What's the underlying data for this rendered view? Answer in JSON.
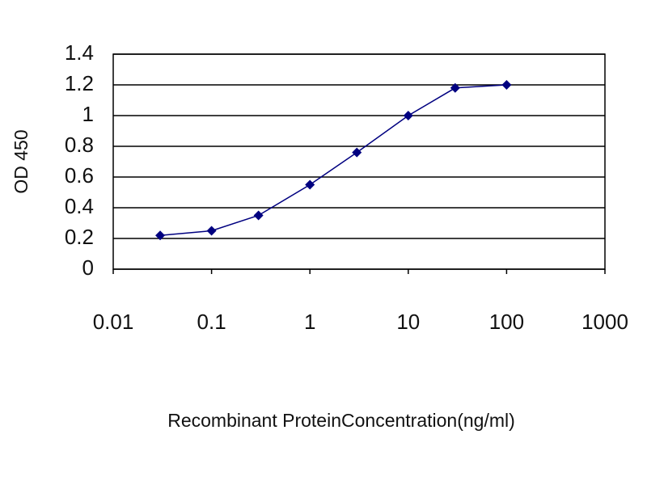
{
  "chart_data": {
    "type": "line",
    "x_label": "Recombinant ProteinConcentration(ng/ml)",
    "y_label": "OD 450",
    "x": [
      0.03,
      0.1,
      0.3,
      1,
      3,
      10,
      30,
      100
    ],
    "values": [
      0.22,
      0.25,
      0.35,
      0.55,
      0.76,
      1.0,
      1.18,
      1.2
    ],
    "color": "#000080",
    "x_scale": "log",
    "xlim": [
      0.01,
      1000
    ],
    "xticks": [
      0.01,
      0.1,
      1,
      10,
      100,
      1000
    ],
    "ylim": [
      0,
      1.4
    ],
    "yticks": [
      0,
      0.2,
      0.4,
      0.6,
      0.8,
      1,
      1.2,
      1.4
    ],
    "grid": true
  }
}
